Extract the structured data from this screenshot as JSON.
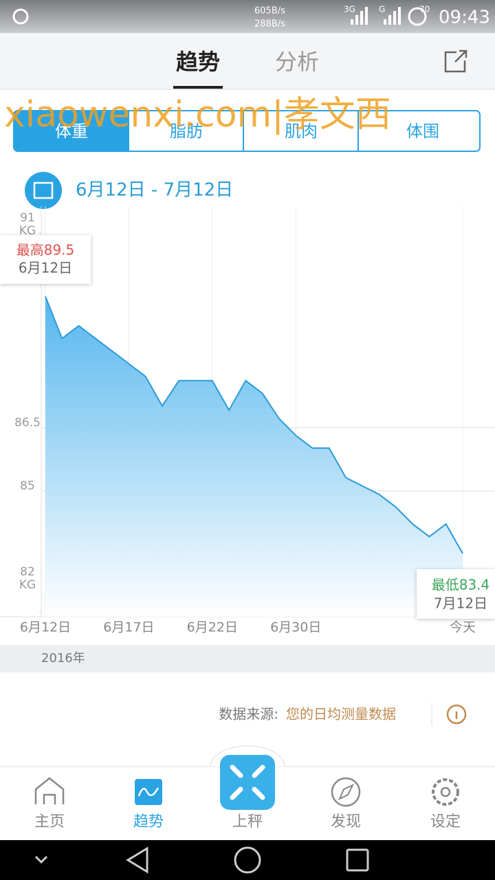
{
  "status_bar": {
    "net_up": "605B/s",
    "net_down": "288B/s",
    "network1": "3G",
    "network2": "G",
    "battery": "70",
    "time": "09:43"
  },
  "header": {
    "tabs": [
      "趋势",
      "分析"
    ]
  },
  "watermark": "xiaowenxi.com|孝文西",
  "segments": [
    "体重",
    "脂肪",
    "肌肉",
    "体围"
  ],
  "date_range": "6月12日 - 7月12日",
  "chart_data": {
    "type": "area",
    "categories": [
      "6月12日",
      null,
      null,
      null,
      null,
      "6月17日",
      null,
      null,
      null,
      null,
      "6月22日",
      null,
      null,
      null,
      null,
      "6月30日",
      null,
      null,
      null,
      null,
      null,
      null,
      null,
      null,
      null,
      "今天"
    ],
    "values": [
      89.5,
      88.5,
      88.8,
      88.5,
      88.2,
      87.9,
      87.6,
      86.9,
      87.5,
      87.5,
      87.5,
      86.8,
      87.5,
      87.2,
      86.6,
      86.2,
      85.9,
      85.9,
      85.2,
      85.0,
      84.8,
      84.5,
      84.1,
      83.8,
      84.1,
      83.4
    ],
    "color": "#2a9ad8",
    "ylim": [
      82,
      91
    ],
    "yticks": [
      82,
      85,
      86.5,
      91
    ],
    "y_unit": "KG",
    "annotations": {
      "max_label": "最高89.5",
      "max_date": "6月12日",
      "min_label": "最低83.4",
      "min_date": "7月12日"
    },
    "year": "2016年"
  },
  "data_source": {
    "label": "数据来源:",
    "value": "您的日均测量数据"
  },
  "nav": [
    "主页",
    "趋势",
    "上秤",
    "发现",
    "设定"
  ]
}
